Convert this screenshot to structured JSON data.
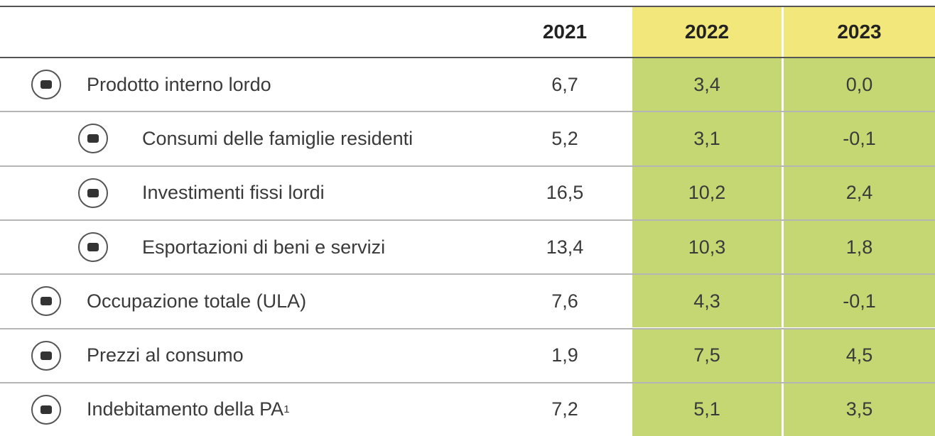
{
  "table": {
    "header": [
      "2021",
      "2022",
      "2023"
    ],
    "rows": [
      {
        "label": "Prodotto interno lordo",
        "level": 0,
        "values": [
          "6,7",
          "3,4",
          "0,0"
        ]
      },
      {
        "label": "Consumi delle famiglie residenti",
        "level": 1,
        "values": [
          "5,2",
          "3,1",
          "-0,1"
        ]
      },
      {
        "label": "Investimenti fissi lordi",
        "level": 1,
        "values": [
          "16,5",
          "10,2",
          "2,4"
        ]
      },
      {
        "label": "Esportazioni di beni e servizi",
        "level": 1,
        "values": [
          "13,4",
          "10,3",
          "1,8"
        ]
      },
      {
        "label": "Occupazione totale (ULA)",
        "level": 0,
        "values": [
          "7,6",
          "4,3",
          "-0,1"
        ]
      },
      {
        "label": "Prezzi al consumo",
        "level": 0,
        "values": [
          "1,9",
          "7,5",
          "4,5"
        ]
      },
      {
        "label": "Indebitamento della PA",
        "note": "1",
        "level": 0,
        "values": [
          "7,2",
          "5,1",
          "3,5"
        ]
      }
    ]
  }
}
